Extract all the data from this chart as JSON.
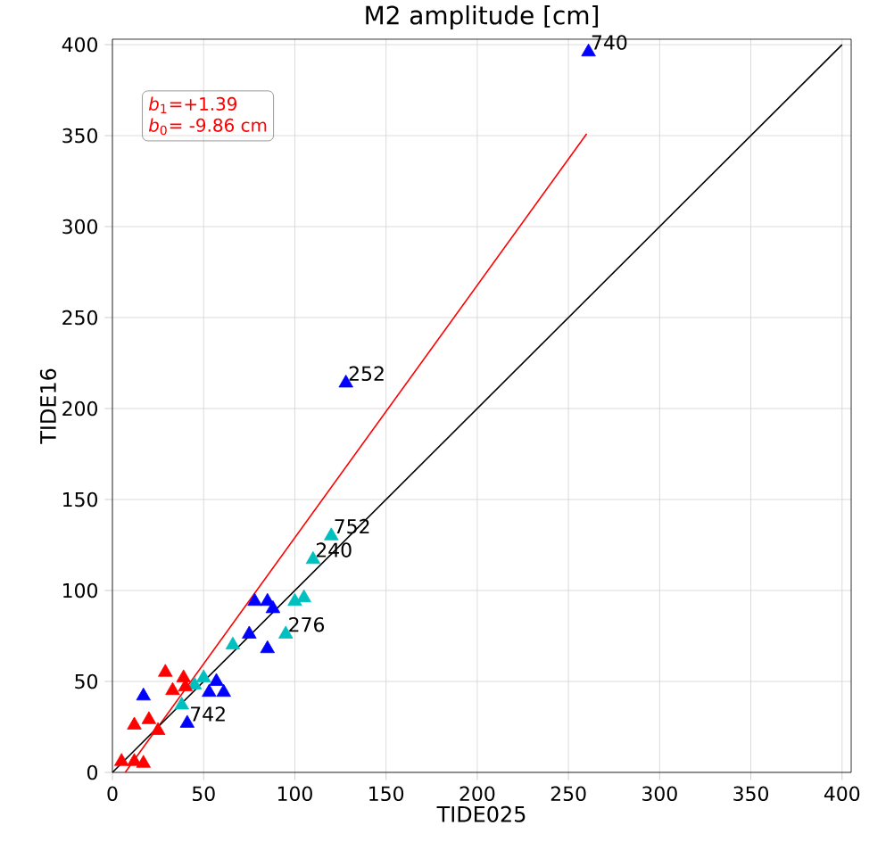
{
  "chart_data": {
    "type": "scatter",
    "title": "M2 amplitude [cm]",
    "xlabel": "TIDE025",
    "ylabel": "TIDE16",
    "xlim": [
      0,
      405
    ],
    "ylim": [
      0,
      403
    ],
    "xticks": [
      0,
      50,
      100,
      150,
      200,
      250,
      300,
      350,
      400
    ],
    "yticks": [
      0,
      50,
      100,
      150,
      200,
      250,
      300,
      350,
      400
    ],
    "grid": true,
    "marker": "triangle",
    "series": [
      {
        "color": "#0000ff",
        "x": [
          261,
          128,
          78,
          85,
          88,
          85,
          75,
          17,
          41,
          53,
          61,
          57
        ],
        "values": [
          396,
          214,
          94,
          94,
          90,
          68,
          76,
          42,
          27,
          44,
          44,
          50
        ]
      },
      {
        "color": "#00bfbf",
        "x": [
          120,
          110,
          100,
          105,
          95,
          66,
          38,
          50,
          45
        ],
        "values": [
          130,
          117,
          94,
          96,
          76,
          70,
          37,
          52,
          48
        ]
      },
      {
        "color": "#ff0000",
        "x": [
          29,
          39,
          33,
          12,
          20,
          25,
          5,
          12,
          17,
          40
        ],
        "values": [
          55,
          52,
          45,
          26,
          29,
          23,
          6,
          6,
          5,
          47
        ]
      },
      {
        "type": "line",
        "marker": "none",
        "color": "#ff0000",
        "x": [
          7,
          260
        ],
        "values": [
          0,
          351
        ]
      },
      {
        "type": "line",
        "marker": "none",
        "color": "#000000",
        "x": [
          0,
          400
        ],
        "values": [
          0,
          400
        ]
      }
    ],
    "annotations": [
      "*b*$_{1}$=+1.39",
      "*b*$_{0}$= -9.86 cm",
      {
        "text": "740",
        "x": 261,
        "y": 396
      },
      {
        "text": "252",
        "x": 128,
        "y": 214
      },
      {
        "text": "752",
        "x": 120,
        "y": 130
      },
      {
        "text": "240",
        "x": 110,
        "y": 117
      },
      {
        "text": "276",
        "x": 95,
        "y": 76
      },
      {
        "text": "742",
        "x": 41,
        "y": 27
      }
    ]
  }
}
